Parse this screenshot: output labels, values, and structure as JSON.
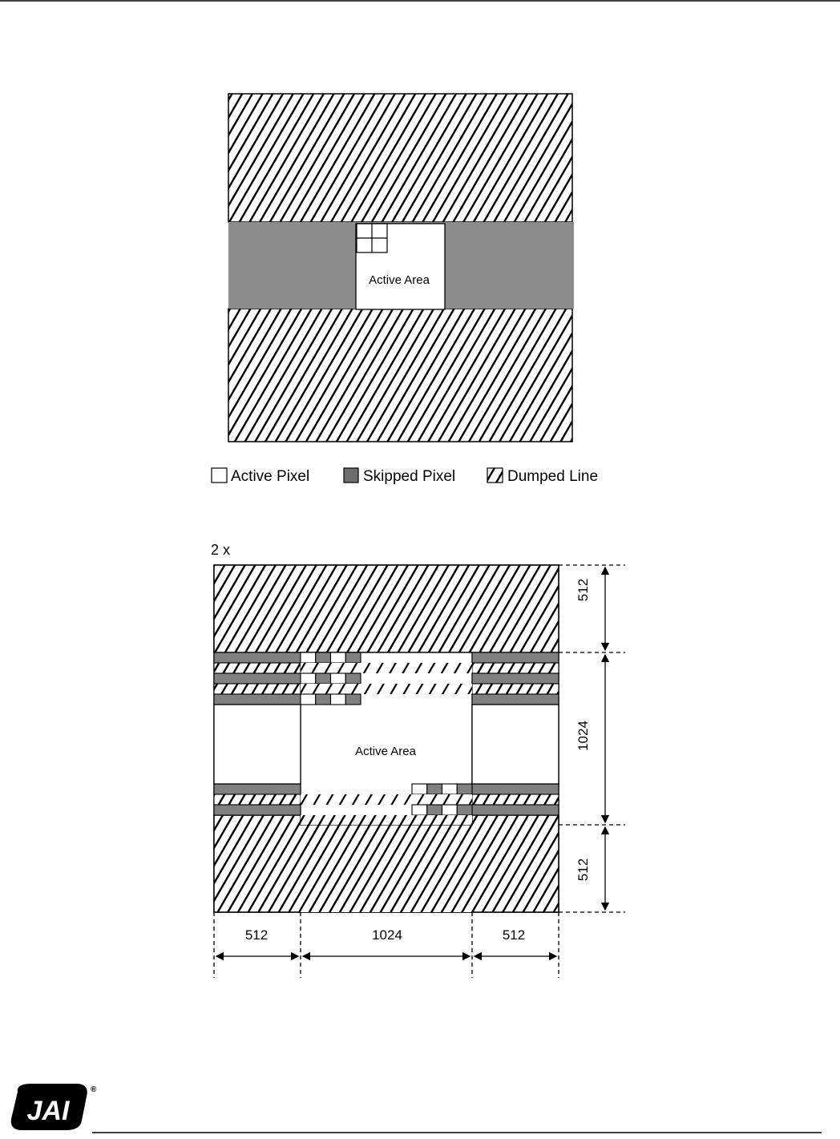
{
  "figure1": {
    "active_area_label": "Active Area",
    "legend": {
      "active_pixel": "Active Pixel",
      "skipped_pixel": "Skipped Pixel",
      "dumped_line": "Dumped Line"
    }
  },
  "figure2": {
    "binning_label": "2 x",
    "active_area_label": "Active Area",
    "right_dims": [
      "512",
      "1024",
      "512"
    ],
    "bottom_dims": [
      "512",
      "1024",
      "512"
    ]
  },
  "colors": {
    "skipped": "#808080",
    "gray_band": "#8c8c8c"
  },
  "footer": {
    "logo_text": "JAI"
  }
}
